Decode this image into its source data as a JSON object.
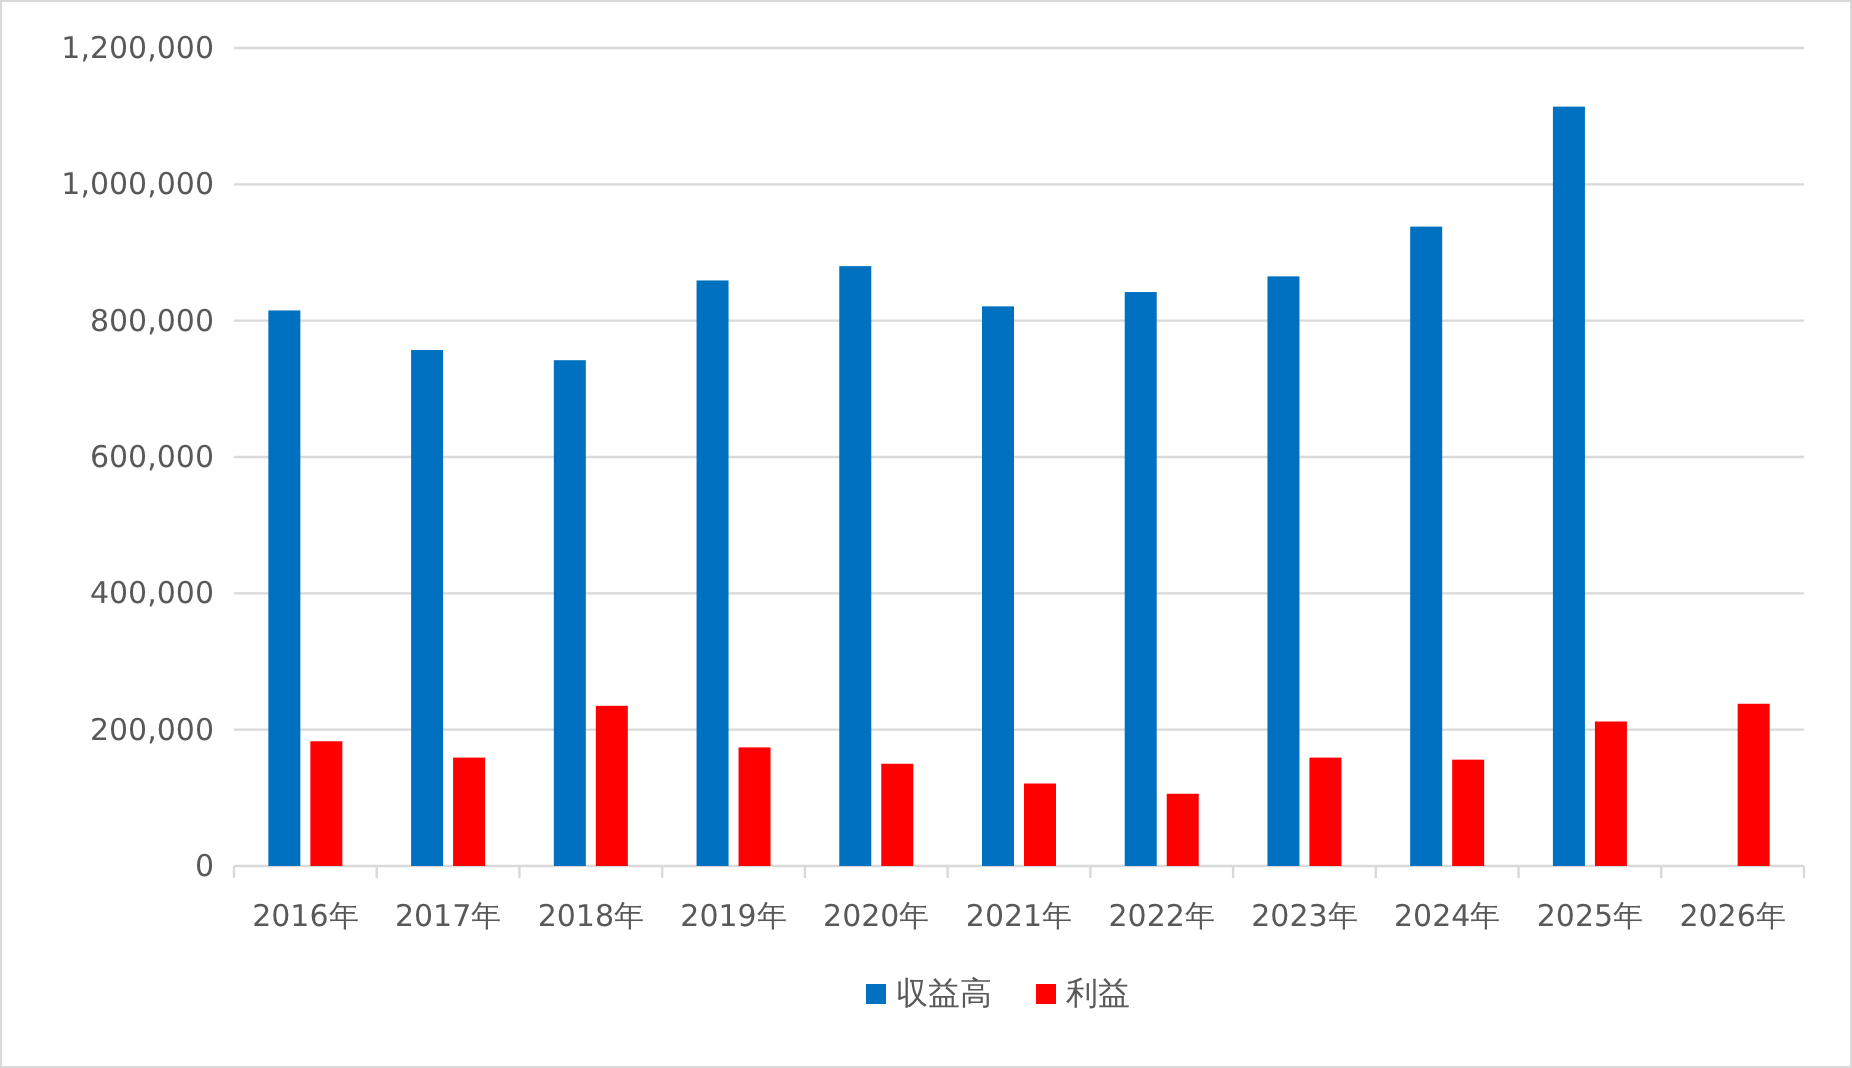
{
  "chart_data": {
    "type": "bar",
    "categories": [
      "2016年",
      "2017年",
      "2018年",
      "2019年",
      "2020年",
      "2021年",
      "2022年",
      "2023年",
      "2024年",
      "2025年",
      "2026年"
    ],
    "series": [
      {
        "name": "収益高",
        "color": "#0070c0",
        "values": [
          815000,
          757000,
          742000,
          859000,
          880000,
          821000,
          842000,
          865000,
          938000,
          1114000,
          null
        ]
      },
      {
        "name": "利益",
        "color": "#ff0000",
        "values": [
          183000,
          159000,
          235000,
          174000,
          150000,
          121000,
          106000,
          159000,
          156000,
          212000,
          238000
        ]
      }
    ],
    "ylim": [
      0,
      1200000
    ],
    "yticks": [
      {
        "value": 0,
        "label": "0"
      },
      {
        "value": 200000,
        "label": "200,000"
      },
      {
        "value": 400000,
        "label": "400,000"
      },
      {
        "value": 600000,
        "label": "600,000"
      },
      {
        "value": 800000,
        "label": "800,000"
      },
      {
        "value": 1000000,
        "label": "1,000,000"
      },
      {
        "value": 1200000,
        "label": "1,200,000"
      }
    ],
    "grid": "y",
    "legend": "bottom"
  }
}
